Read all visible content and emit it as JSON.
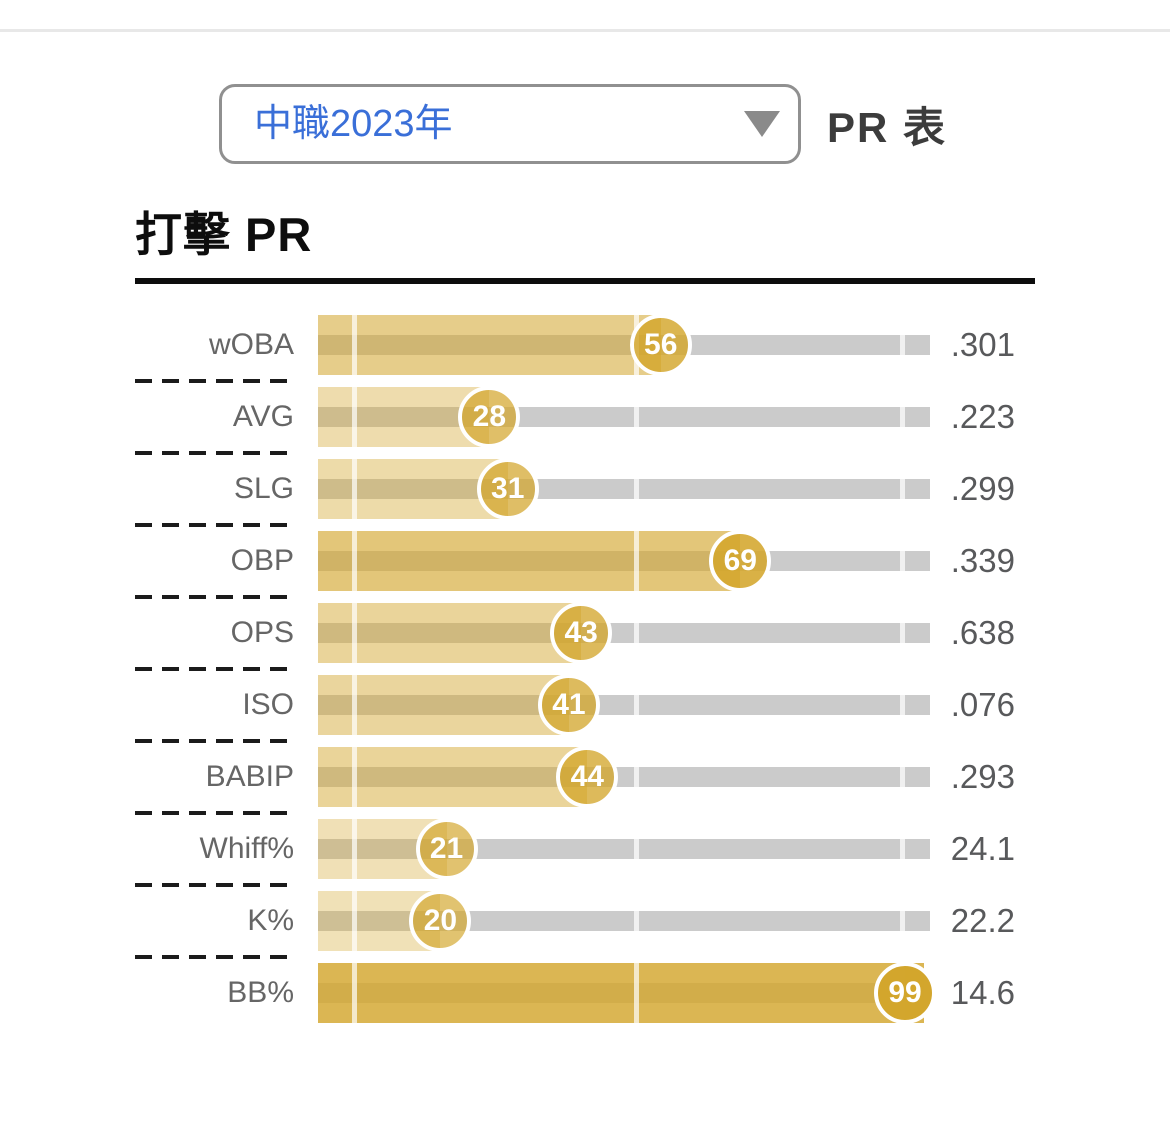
{
  "header": {
    "dropdown": {
      "value": "中職2023年",
      "caret_icon": "caret-down"
    },
    "table_label": "PR 表"
  },
  "section": {
    "title": "打擊 PR"
  },
  "chart_data": {
    "type": "bar",
    "orientation": "horizontal",
    "title": "打擊 PR",
    "categories": [
      "wOBA",
      "AVG",
      "SLG",
      "OBP",
      "OPS",
      "ISO",
      "BABIP",
      "Whiff%",
      "K%",
      "BB%"
    ],
    "series": [
      {
        "name": "PR",
        "values": [
          56,
          28,
          31,
          69,
          43,
          41,
          44,
          21,
          20,
          99
        ]
      },
      {
        "name": "stat_value",
        "values": [
          ".301",
          ".223",
          ".299",
          ".339",
          ".638",
          ".076",
          ".293",
          "24.1",
          "22.2",
          "14.6"
        ]
      }
    ],
    "rows": [
      {
        "label": "wOBA",
        "pr": 56,
        "value": ".301"
      },
      {
        "label": "AVG",
        "pr": 28,
        "value": ".223"
      },
      {
        "label": "SLG",
        "pr": 31,
        "value": ".299"
      },
      {
        "label": "OBP",
        "pr": 69,
        "value": ".339"
      },
      {
        "label": "OPS",
        "pr": 43,
        "value": ".638"
      },
      {
        "label": "ISO",
        "pr": 41,
        "value": ".076"
      },
      {
        "label": "BABIP",
        "pr": 44,
        "value": ".293"
      },
      {
        "label": "Whiff%",
        "pr": 21,
        "value": "24.1"
      },
      {
        "label": "K%",
        "pr": 20,
        "value": "22.2"
      },
      {
        "label": "BB%",
        "pr": 99,
        "value": "14.6"
      }
    ],
    "xlim": [
      0,
      100
    ],
    "gridlines_pct": [
      6,
      52,
      95.5
    ],
    "legend": "none",
    "colors": {
      "bar_base_rgb": [
        211,
        166,
        44
      ],
      "badge_ring": "#ffffff",
      "track": "#cbcbcb",
      "label_text": "#666666",
      "value_text": "#58595b",
      "dropdown_text": "#3a6fd8",
      "title_text": "#0d0d0d"
    }
  }
}
